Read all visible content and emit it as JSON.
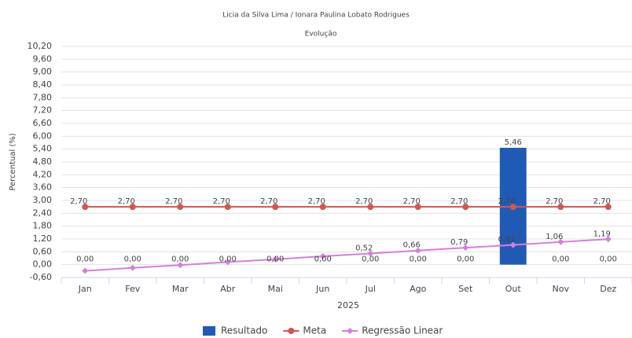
{
  "chart_data": {
    "type": "combo",
    "subtitle": "Licia da Silva Lima / Ionara Paulina Lobato Rodrigues",
    "title": "Evolução",
    "x_label": "2025",
    "y_label": "Percentual (%)",
    "categories": [
      "Jan",
      "Fev",
      "Mar",
      "Abr",
      "Mai",
      "Jun",
      "Jul",
      "Ago",
      "Set",
      "Out",
      "Nov",
      "Dez"
    ],
    "ylim": [
      -0.6,
      10.2
    ],
    "yticks": [
      {
        "value": -0.6,
        "label": "-0,60"
      },
      {
        "value": 0,
        "label": "0,00"
      },
      {
        "value": 0.6,
        "label": "0,60"
      },
      {
        "value": 1.2,
        "label": "1,20"
      },
      {
        "value": 1.8,
        "label": "1,80"
      },
      {
        "value": 2.4,
        "label": "2,40"
      },
      {
        "value": 3.0,
        "label": "3,00"
      },
      {
        "value": 3.6,
        "label": "3,60"
      },
      {
        "value": 4.2,
        "label": "4,20"
      },
      {
        "value": 4.8,
        "label": "4,80"
      },
      {
        "value": 5.4,
        "label": "5,40"
      },
      {
        "value": 6.0,
        "label": "6,00"
      },
      {
        "value": 6.6,
        "label": "6,60"
      },
      {
        "value": 7.2,
        "label": "7,20"
      },
      {
        "value": 7.8,
        "label": "7,80"
      },
      {
        "value": 8.4,
        "label": "8,40"
      },
      {
        "value": 9.0,
        "label": "9,00"
      },
      {
        "value": 9.6,
        "label": "9,60"
      },
      {
        "value": 10.2,
        "label": "10,20"
      }
    ],
    "grid": true,
    "series": [
      {
        "name": "Resultado",
        "type": "bar",
        "color": "#1f5bb5",
        "values": [
          0,
          0,
          0,
          0,
          0,
          0,
          0,
          0,
          0,
          5.46,
          0,
          0
        ],
        "value_labels": [
          "0,00",
          "0,00",
          "0,00",
          "0,00",
          "0,00",
          "0,00",
          "0,00",
          "0,00",
          "0,00",
          "5,46",
          "0,00",
          "0,00"
        ]
      },
      {
        "name": "Meta",
        "type": "line",
        "marker": "circle",
        "color": "#d9534f",
        "values": [
          2.7,
          2.7,
          2.7,
          2.7,
          2.7,
          2.7,
          2.7,
          2.7,
          2.7,
          2.7,
          2.7,
          2.7
        ],
        "value_labels": [
          "2,70",
          "2,70",
          "2,70",
          "2,70",
          "2,70",
          "2,70",
          "2,70",
          "2,70",
          "2,70",
          "2,70",
          "2,70",
          "2,70"
        ]
      },
      {
        "name": "Regressão Linear",
        "type": "line",
        "marker": "diamond",
        "color": "#d67fdc",
        "values": [
          -0.29,
          -0.15,
          -0.02,
          0.12,
          0.25,
          0.39,
          0.52,
          0.66,
          0.79,
          0.92,
          1.06,
          1.19
        ],
        "value_labels": [
          null,
          null,
          null,
          null,
          null,
          null,
          "0,52",
          "0,66",
          "0,79",
          "0,92",
          "1,06",
          "1,19"
        ]
      }
    ]
  }
}
